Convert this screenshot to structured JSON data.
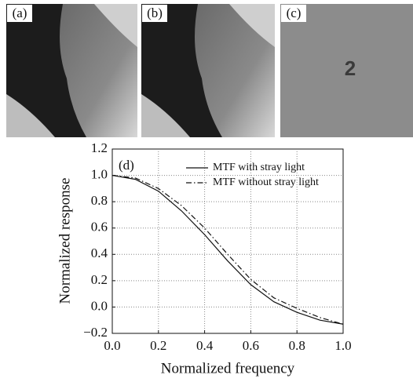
{
  "panels": [
    {
      "label": "(a)"
    },
    {
      "label": "(b)"
    },
    {
      "label": "(c)",
      "text": "2"
    }
  ],
  "chart_data": {
    "type": "line",
    "panel_label": "(d)",
    "x_label": "Normalized frequency",
    "y_label": "Normalized response",
    "x": [
      0,
      0.1,
      0.2,
      0.3,
      0.4,
      0.5,
      0.6,
      0.7,
      0.8,
      0.9,
      1.0
    ],
    "series": [
      {
        "name": "MTF with stray light",
        "color": "#111111",
        "style": "solid",
        "values": [
          1.0,
          0.97,
          0.88,
          0.73,
          0.55,
          0.35,
          0.17,
          0.04,
          -0.04,
          -0.1,
          -0.13
        ]
      },
      {
        "name": "MTF without stray light",
        "color": "#111111",
        "style": "dashdot",
        "values": [
          1.0,
          0.98,
          0.9,
          0.77,
          0.6,
          0.4,
          0.21,
          0.07,
          -0.01,
          -0.08,
          -0.13
        ]
      }
    ],
    "xlim": [
      0,
      1
    ],
    "ylim": [
      -0.2,
      1.2
    ],
    "xticks": [
      {
        "value": 0,
        "label": "0.0"
      },
      0.2,
      0.4,
      0.6,
      0.8,
      {
        "value": 1,
        "label": "1.0"
      }
    ],
    "yticks": [
      {
        "value": -0.2,
        "label": "−0.2"
      },
      {
        "value": 0,
        "label": "0.0"
      },
      0.2,
      0.4,
      0.6,
      0.8,
      {
        "value": 1,
        "label": "1.0"
      },
      1.2
    ],
    "grid": true,
    "legend": "upper right"
  }
}
